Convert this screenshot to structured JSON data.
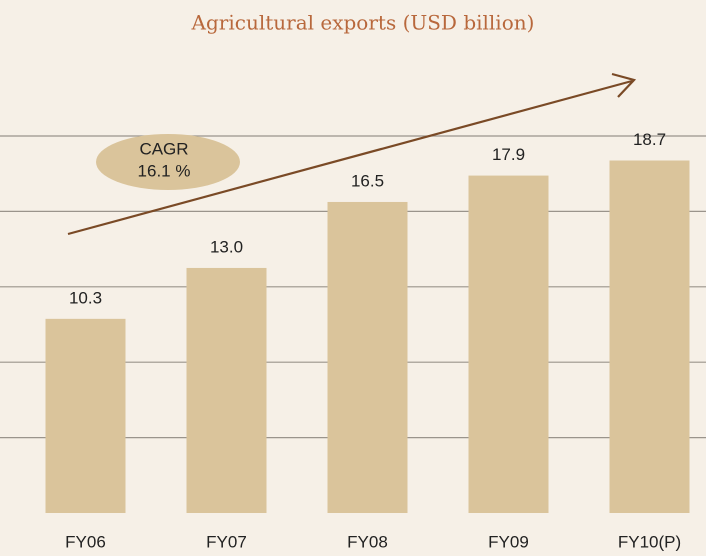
{
  "chart_data": {
    "type": "bar",
    "title": "Agricultural exports (USD  billion)",
    "categories": [
      "FY06",
      "FY07",
      "FY08",
      "FY09",
      "FY10(P)"
    ],
    "values": [
      10.3,
      13.0,
      16.5,
      17.9,
      18.7
    ],
    "value_labels": [
      "10.3",
      "13.0",
      "16.5",
      "17.9",
      "18.7"
    ],
    "color": "#dac49b",
    "ylim": [
      0,
      20
    ],
    "yticks": [
      4,
      8,
      12,
      16,
      20
    ],
    "grid": true,
    "annotations": [
      "CAGR",
      "16.1 %"
    ]
  }
}
